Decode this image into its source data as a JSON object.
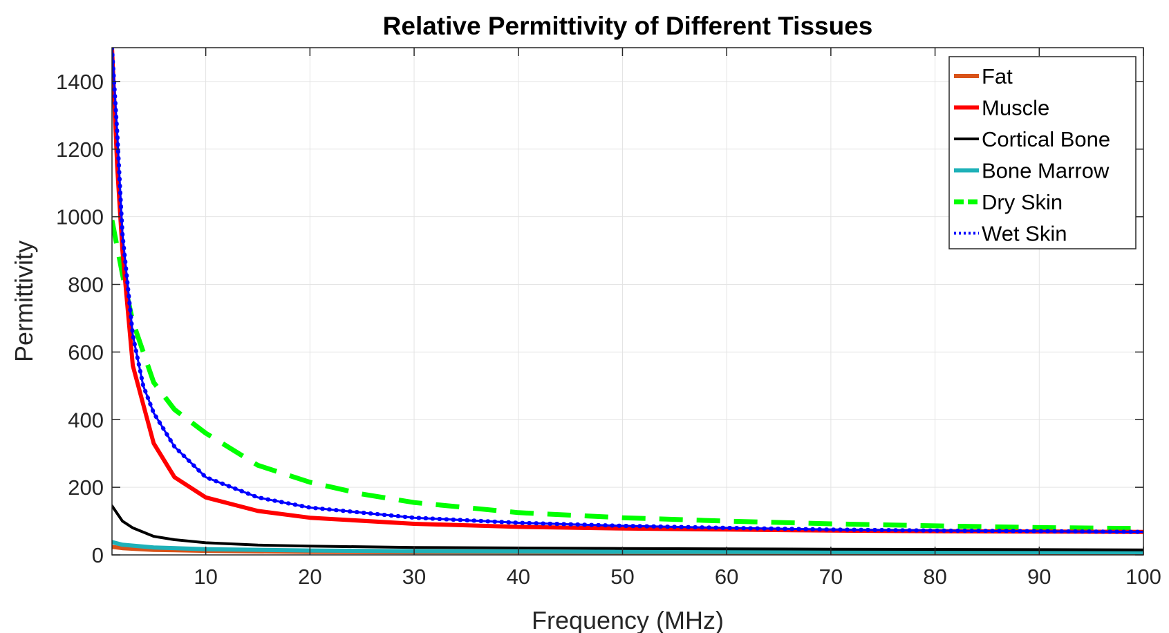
{
  "chart_data": {
    "type": "line",
    "title": "Relative Permittivity of Different Tissues",
    "xlabel": "Frequency (MHz)",
    "ylabel": "Permittivity",
    "xlim": [
      1,
      100
    ],
    "ylim": [
      0,
      1500
    ],
    "xticks": [
      10,
      20,
      30,
      40,
      50,
      60,
      70,
      80,
      90,
      100
    ],
    "yticks": [
      0,
      200,
      400,
      600,
      800,
      1000,
      1200,
      1400
    ],
    "grid": true,
    "legend_position": "top-right",
    "series": [
      {
        "name": "Fat",
        "color": "#D95319",
        "style": "solid",
        "x": [
          1,
          2,
          5,
          10,
          20,
          30,
          50,
          100
        ],
        "y": [
          24,
          20,
          15,
          12,
          9,
          8,
          7,
          6
        ]
      },
      {
        "name": "Muscle",
        "color": "#FF0000",
        "style": "solid",
        "x": [
          1,
          1.5,
          2,
          3,
          5,
          7,
          10,
          15,
          20,
          30,
          40,
          50,
          60,
          70,
          80,
          90,
          100
        ],
        "y": [
          1500,
          1150,
          900,
          560,
          330,
          230,
          170,
          130,
          110,
          92,
          83,
          78,
          75,
          72,
          70,
          69,
          68
        ]
      },
      {
        "name": "Cortical Bone",
        "color": "#000000",
        "style": "solid",
        "x": [
          1,
          2,
          3,
          5,
          7,
          10,
          15,
          20,
          30,
          50,
          70,
          100
        ],
        "y": [
          145,
          100,
          80,
          55,
          45,
          36,
          29,
          26,
          22,
          19,
          17,
          15
        ]
      },
      {
        "name": "Bone Marrow",
        "color": "#1EB1B8",
        "style": "solid",
        "x": [
          1,
          2,
          5,
          10,
          20,
          30,
          50,
          100
        ],
        "y": [
          38,
          30,
          22,
          17,
          13,
          11,
          9,
          8
        ]
      },
      {
        "name": "Dry Skin",
        "color": "#00FF00",
        "style": "dashed",
        "x": [
          1,
          2,
          3,
          5,
          7,
          10,
          15,
          20,
          25,
          30,
          40,
          50,
          60,
          70,
          80,
          90,
          100
        ],
        "y": [
          990,
          830,
          690,
          510,
          430,
          360,
          265,
          215,
          180,
          155,
          125,
          110,
          100,
          92,
          86,
          81,
          78
        ]
      },
      {
        "name": "Wet Skin",
        "color": "#0000FF",
        "style": "dotted",
        "x": [
          1,
          1.5,
          2,
          3,
          4,
          5,
          7,
          10,
          15,
          20,
          30,
          40,
          50,
          60,
          70,
          80,
          90,
          100
        ],
        "y": [
          1500,
          1250,
          950,
          650,
          500,
          420,
          320,
          230,
          170,
          140,
          110,
          95,
          86,
          80,
          75,
          72,
          70,
          68
        ]
      }
    ]
  }
}
